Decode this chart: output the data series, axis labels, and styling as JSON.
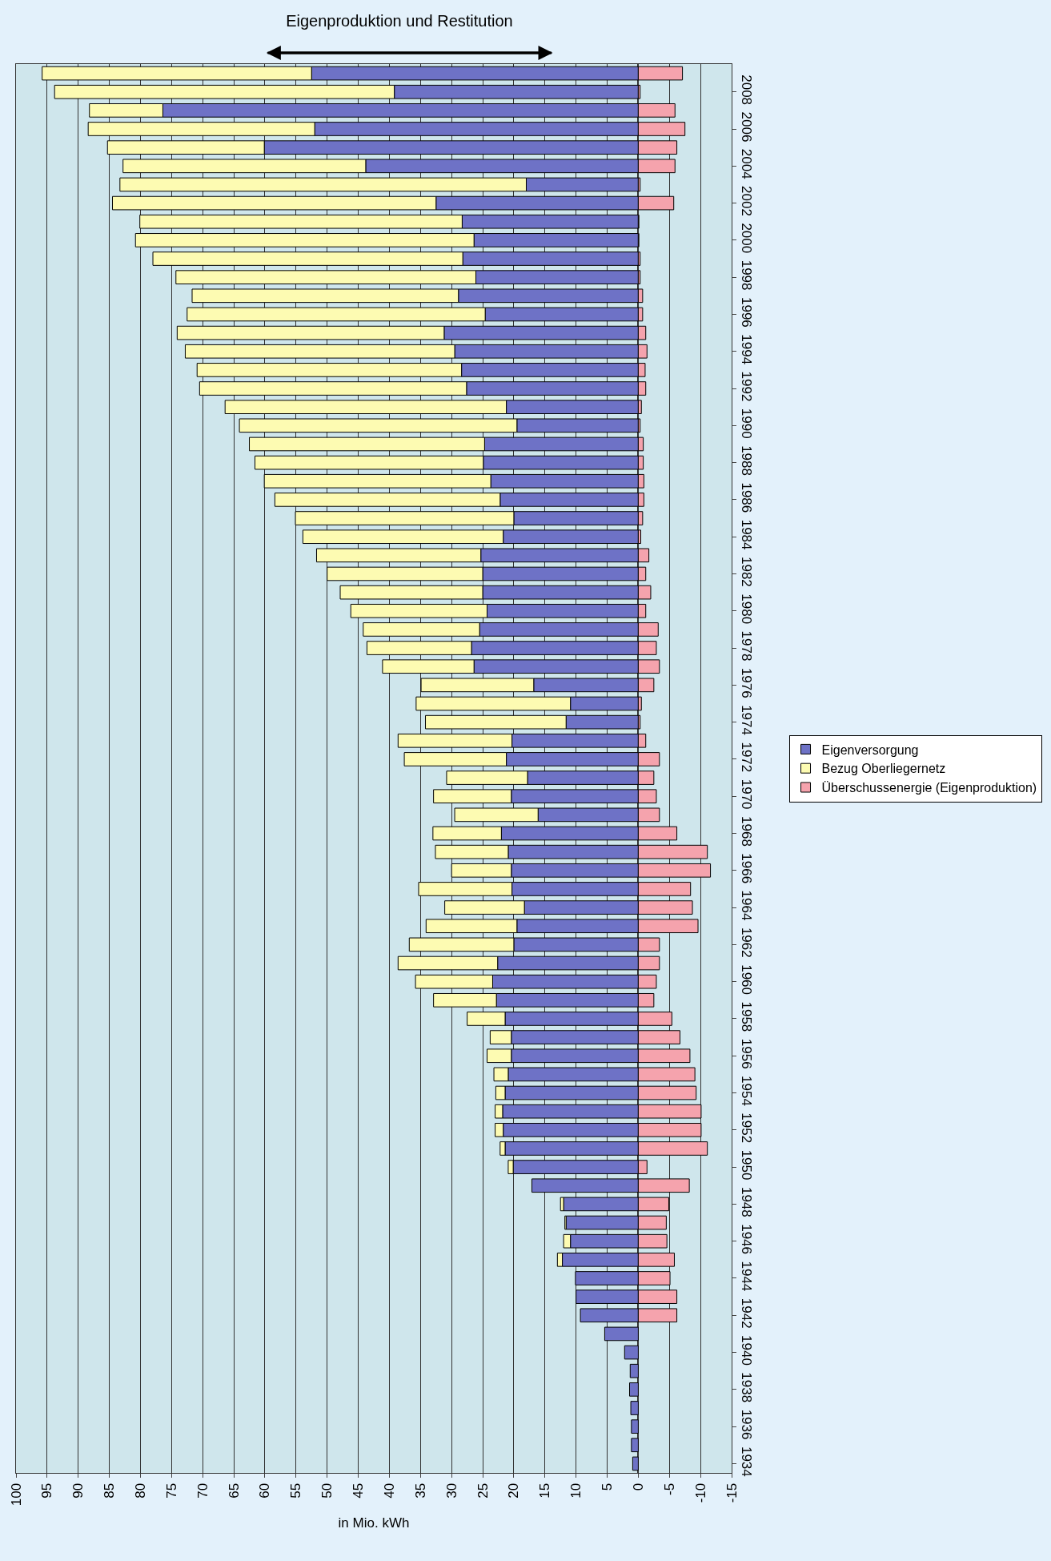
{
  "chart_data": {
    "type": "bar",
    "orientation": "horizontal",
    "stacked": true,
    "title": "Eigenproduktion und Restitution",
    "xlabel": "in Mio. kWh",
    "categories": [
      null,
      "2008",
      null,
      "2006",
      null,
      "2004",
      null,
      "2002",
      null,
      "2000",
      null,
      "1998",
      null,
      "1996",
      null,
      "1994",
      null,
      "1992",
      null,
      "1990",
      null,
      "1988",
      null,
      "1986",
      null,
      "1984",
      null,
      "1982",
      null,
      "1980",
      null,
      "1978",
      null,
      "1976",
      null,
      "1974",
      null,
      "1972",
      null,
      "1970",
      null,
      "1968",
      null,
      "1966",
      null,
      "1964",
      null,
      "1962",
      null,
      "1960",
      null,
      "1958",
      null,
      "1956",
      null,
      "1954",
      null,
      "1952",
      null,
      "1950",
      null,
      "1948",
      null,
      "1946",
      null,
      "1944",
      null,
      "1942",
      null,
      "1940",
      null,
      "1938",
      null,
      "1936",
      null,
      "1934"
    ],
    "series": [
      {
        "name": "Eigenversorgung",
        "color": "#6e72c6",
        "values": [
          52.5,
          39.2,
          76.4,
          52,
          60.1,
          43.8,
          18,
          32.5,
          28.3,
          26.4,
          28.2,
          26.1,
          28.9,
          24.6,
          31.2,
          29.5,
          28.4,
          27.6,
          21.2,
          19.5,
          24.7,
          24.9,
          23.7,
          22.2,
          20,
          21.7,
          25.3,
          25,
          25,
          24.3,
          25.5,
          26.8,
          26.4,
          16.8,
          10.9,
          11.6,
          20.3,
          21.2,
          17.8,
          20.4,
          16.1,
          22,
          20.9,
          20.4,
          20.3,
          18.3,
          19.5,
          20,
          22.6,
          23.4,
          22.8,
          21.4,
          20.4,
          20.4,
          20.9,
          21.4,
          21.8,
          21.7,
          21.4,
          20.1,
          17.1,
          12,
          11.6,
          10.9,
          12.2,
          10.1,
          10,
          9.3,
          5.4,
          2.2,
          1.3,
          1.4,
          1.2,
          1.1,
          1.1,
          0.9
        ]
      },
      {
        "name": "Bezug Oberliegernetz",
        "color": "#fdfbb2",
        "values": [
          43.3,
          54.6,
          11.8,
          36.4,
          25.2,
          39,
          65.3,
          52,
          51.8,
          54.4,
          49.8,
          48.2,
          42.8,
          47.9,
          42.9,
          43.3,
          42.5,
          42.9,
          45.2,
          44.6,
          37.8,
          36.7,
          36.4,
          36.2,
          35.1,
          32.2,
          26.4,
          25,
          22.9,
          21.9,
          18.7,
          16.8,
          14.7,
          18.1,
          24.8,
          22.6,
          18.3,
          16.4,
          13,
          12.5,
          13.4,
          11,
          11.7,
          9.6,
          15,
          12.8,
          14.6,
          16.8,
          16,
          12.4,
          10.1,
          6.1,
          3.4,
          3.9,
          2.3,
          1.5,
          1.2,
          1.3,
          0.8,
          0.8,
          null,
          0.5,
          0.2,
          1.1,
          0.8,
          null,
          null,
          null,
          null,
          null,
          null,
          null,
          null,
          null,
          null,
          null
        ]
      },
      {
        "name": "Überschussenergie (Eigenproduktion)",
        "color": "#f5a3ad",
        "values": [
          -7.1,
          -0.3,
          -5.9,
          -7.5,
          -6.2,
          -5.9,
          -0.3,
          -5.7,
          -0.1,
          -0.1,
          -0.3,
          -0.3,
          -0.7,
          -0.7,
          -1.2,
          -1.4,
          -1.1,
          -1.2,
          -0.5,
          -0.3,
          -0.8,
          -0.8,
          -0.9,
          -0.9,
          -0.7,
          -0.4,
          -1.7,
          -1.2,
          -2,
          -1.2,
          -3.2,
          -2.9,
          -3.4,
          -2.5,
          -0.5,
          -0.3,
          -1.2,
          -3.4,
          -2.5,
          -2.9,
          -3.4,
          -6.2,
          -11.1,
          -11.6,
          -8.4,
          -8.7,
          -9.6,
          -3.4,
          -3.4,
          -2.9,
          -2.5,
          -5.4,
          -6.7,
          -8.3,
          -9.1,
          -9.3,
          -10.1,
          -10.1,
          -11.1,
          -1.4,
          -8.2,
          -4.9,
          -4.5,
          -4.6,
          -5.8,
          -5.1,
          -6.2,
          -6.2,
          null,
          null,
          null,
          null,
          null,
          null,
          null,
          null
        ]
      }
    ],
    "xlim": [
      100,
      -15
    ],
    "xticks": [
      100,
      95,
      90,
      85,
      80,
      75,
      70,
      65,
      60,
      55,
      50,
      45,
      40,
      35,
      30,
      25,
      20,
      15,
      10,
      5,
      0,
      -5,
      -10,
      -15
    ],
    "grid": "x",
    "legend": "right"
  }
}
